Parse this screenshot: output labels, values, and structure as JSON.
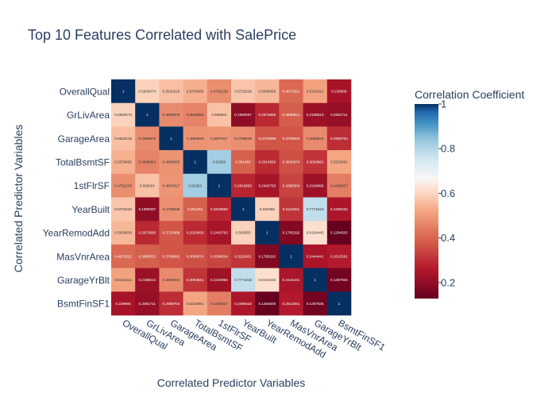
{
  "chart_data": {
    "type": "heatmap",
    "title": "Top 10 Features Correlated with SalePrice",
    "xlabel": "Correlated Predictor Variables",
    "ylabel": "Correlated Predictor Variables",
    "colorbar_title": "Correlation Coefficient",
    "colorscale": "RdBu",
    "zrange": [
      0.1284505,
      1
    ],
    "colorbar_ticks": [
      "1",
      "0.8",
      "0.6",
      "0.4",
      "0.2"
    ],
    "colorbar_tick_values": [
      1,
      0.8,
      0.6,
      0.4,
      0.2
    ],
    "labels": [
      "OverallQual",
      "GrLivArea",
      "GarageArea",
      "TotalBsmtSF",
      "1stFlrSF",
      "YearBuilt",
      "YearRemodAdd",
      "MasVnrArea",
      "GarageYrBlt",
      "BsmtFinSF1"
    ],
    "matrix": [
      [
        1,
        0.5930074,
        0.5620218,
        0.5378085,
        0.4762238,
        0.5723228,
        0.5506839,
        0.4072521,
        0.5142312,
        0.239666
      ],
      [
        0.5930074,
        1,
        0.4689975,
        0.4548682,
        0.566024,
        0.1990097,
        0.2873685,
        0.3880521,
        0.2198013,
        0.2081711
      ],
      [
        0.5620218,
        0.4689975,
        1,
        0.4866655,
        0.4897817,
        0.4789538,
        0.3715998,
        0.3708842,
        0.4688044,
        0.2969704
      ],
      [
        0.5378085,
        0.4548682,
        0.4866655,
        1,
        0.81953,
        0.391452,
        0.2910656,
        0.3600674,
        0.3093661,
        0.5223961
      ],
      [
        0.4762238,
        0.566024,
        0.4897817,
        0.81953,
        1,
        0.2819859,
        0.2403793,
        0.3398504,
        0.2248966,
        0.4458627
      ],
      [
        0.5723228,
        0.1990097,
        0.4789538,
        0.391452,
        0.2819859,
        1,
        0.592855,
        0.3116001,
        0.7771818,
        0.2495032
      ],
      [
        0.5506839,
        0.2873685,
        0.3715998,
        0.2910656,
        0.2403793,
        0.592855,
        1,
        0.1765292,
        0.6164445,
        0.1284505
      ],
      [
        0.4072521,
        0.3880521,
        0.3708842,
        0.3600674,
        0.3398504,
        0.3116001,
        0.1765292,
        1,
        0.2444441,
        0.2612561
      ],
      [
        0.5142312,
        0.2198013,
        0.4688044,
        0.3093661,
        0.2248966,
        0.7771818,
        0.6164445,
        0.2444441,
        1,
        0.1487825
      ],
      [
        0.239666,
        0.2081711,
        0.2969704,
        0.5223961,
        0.4458627,
        0.2495032,
        0.1284505,
        0.2612561,
        0.1487825,
        1
      ]
    ]
  }
}
